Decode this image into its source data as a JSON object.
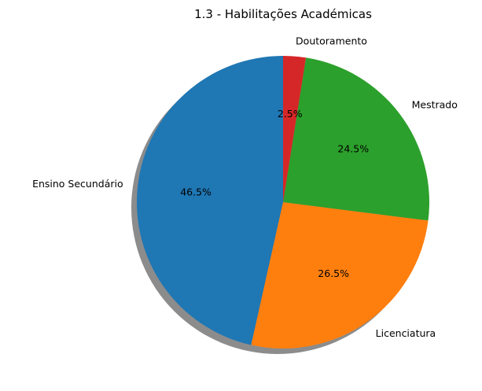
{
  "chart_data": {
    "type": "pie",
    "title": "1.3 - Habilitações Académicas",
    "categories": [
      "Ensino Secundário",
      "Licenciatura",
      "Mestrado",
      "Doutoramento"
    ],
    "values": [
      46.5,
      26.5,
      24.5,
      2.5
    ],
    "value_labels": [
      "46.5%",
      "26.5%",
      "24.5%",
      "2.5%"
    ],
    "colors": [
      "#1f77b4",
      "#ff7f0e",
      "#2ca02c",
      "#d62728"
    ],
    "start_angle": "top",
    "direction": "counterclockwise",
    "shadow": true
  }
}
